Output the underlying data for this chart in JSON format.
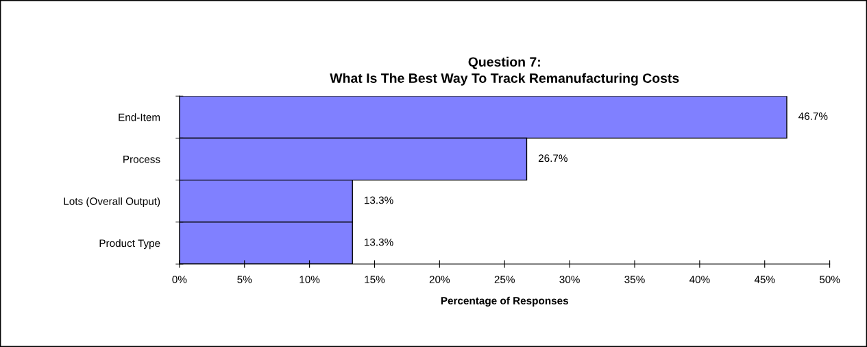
{
  "chart_data": {
    "type": "bar",
    "orientation": "horizontal",
    "title": "Question 7:\nWhat Is The Best Way To Track Remanufacturing Costs",
    "xlabel": "Percentage of Responses",
    "categories": [
      "End-Item",
      "Process",
      "Lots (Overall Output)",
      "Product Type"
    ],
    "values": [
      46.7,
      26.7,
      13.3,
      13.3
    ],
    "value_labels": [
      "46.7%",
      "26.7%",
      "13.3%",
      "13.3%"
    ],
    "color": "#8080ff",
    "xlim": [
      0,
      50
    ],
    "xticks": [
      {
        "value": 0,
        "label": "0%"
      },
      {
        "value": 5,
        "label": "5%"
      },
      {
        "value": 10,
        "label": "10%"
      },
      {
        "value": 15,
        "label": "15%"
      },
      {
        "value": 20,
        "label": "20%"
      },
      {
        "value": 25,
        "label": "25%"
      },
      {
        "value": 30,
        "label": "30%"
      },
      {
        "value": 35,
        "label": "35%"
      },
      {
        "value": 40,
        "label": "40%"
      },
      {
        "value": 45,
        "label": "45%"
      },
      {
        "value": 50,
        "label": "50%"
      }
    ],
    "grid": false,
    "legend": false
  }
}
